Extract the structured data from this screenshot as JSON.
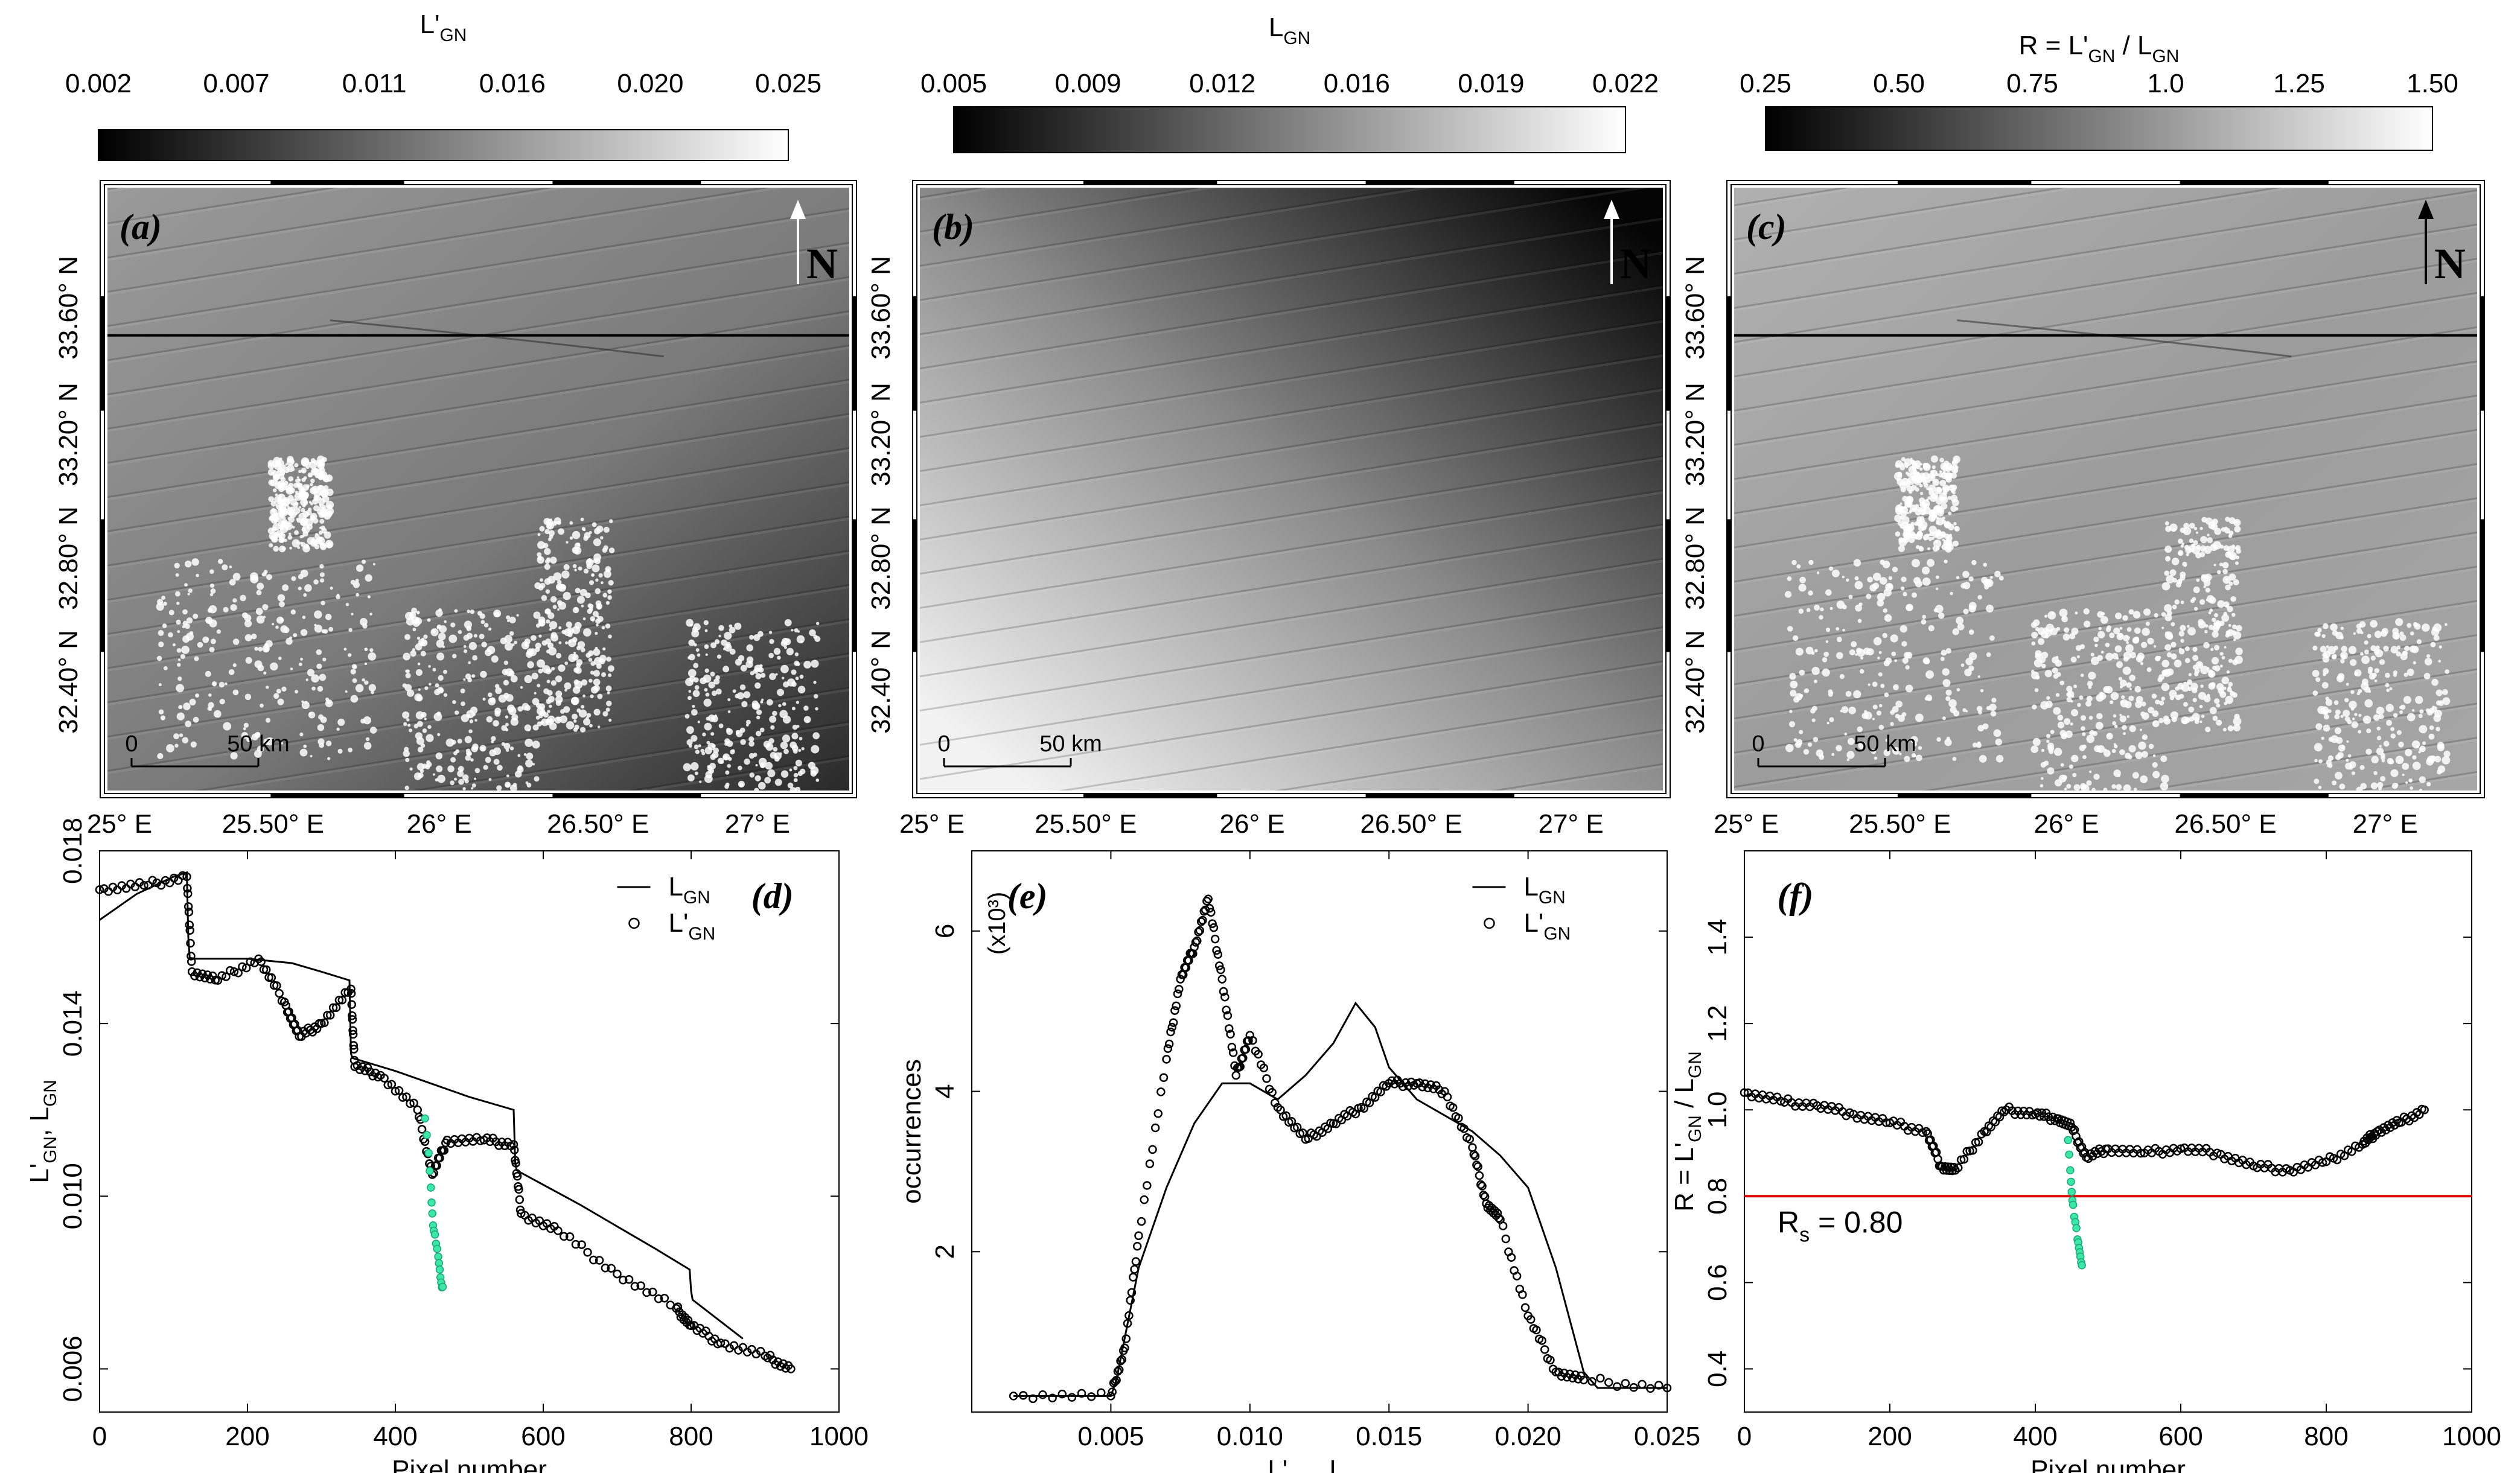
{
  "colorbars": [
    {
      "title": "L'",
      "sub": "GN",
      "ticks": [
        "0.002",
        "0.007",
        "0.011",
        "0.016",
        "0.020",
        "0.025"
      ]
    },
    {
      "title": "L",
      "sub": "GN",
      "ticks": [
        "0.005",
        "0.009",
        "0.012",
        "0.016",
        "0.019",
        "0.022"
      ]
    },
    {
      "title": "R = L'",
      "sub": "GN",
      "title2": " / L",
      "sub2": "GN",
      "ticks": [
        "0.25",
        "0.50",
        "0.75",
        "1.0",
        "1.25",
        "1.50"
      ]
    }
  ],
  "maps": [
    {
      "label": "(a)",
      "north": "N",
      "scale_zero": "0",
      "scale_dist": "50 km",
      "tone": "ratio_a"
    },
    {
      "label": "(b)",
      "north": "N",
      "scale_zero": "0",
      "scale_dist": "50 km",
      "tone": "gradient"
    },
    {
      "label": "(c)",
      "north": "N",
      "scale_zero": "0",
      "scale_dist": "50 km",
      "tone": "ratio_c"
    }
  ],
  "lat_ticks": [
    "32.40° N",
    "32.80° N",
    "33.20° N",
    "33.60° N"
  ],
  "lon_ticks": [
    "25° E",
    "25.50° E",
    "26° E",
    "26.50° E",
    "27° E"
  ],
  "chart_data": [
    {
      "panel": "(d)",
      "type": "line",
      "xlabel": "Pixel number",
      "ylabel": "L'GN, LGN",
      "xlim": [
        0,
        1000
      ],
      "ylim": [
        0.005,
        0.018
      ],
      "xticks": [
        "0",
        "200",
        "400",
        "600",
        "800",
        "1000"
      ],
      "yticks": [
        "0.006",
        "0.010",
        "0.014",
        "0.018"
      ],
      "legend_position": "top-right",
      "series": [
        {
          "name": "LGN",
          "style": "line",
          "color": "#000000",
          "x": [
            0,
            50,
            100,
            118,
            120,
            122,
            200,
            260,
            300,
            338,
            340,
            342,
            400,
            450,
            500,
            560,
            562,
            564,
            650,
            700,
            750,
            798,
            800,
            802,
            870
          ],
          "y": [
            0.0164,
            0.017,
            0.0174,
            0.0175,
            0.016,
            0.0155,
            0.0155,
            0.0154,
            0.0152,
            0.015,
            0.0133,
            0.0132,
            0.0129,
            0.0126,
            0.0123,
            0.012,
            0.0108,
            0.0106,
            0.0098,
            0.0093,
            0.0088,
            0.0083,
            0.0078,
            0.0076,
            0.0067
          ]
        },
        {
          "name": "L'GN",
          "style": "markers",
          "color": "#000000",
          "x": [
            0,
            60,
            118,
            125,
            160,
            215,
            250,
            270,
            300,
            340,
            345,
            380,
            430,
            450,
            470,
            520,
            560,
            570,
            620,
            700,
            780,
            800,
            840,
            900,
            935
          ],
          "y": [
            0.0171,
            0.0172,
            0.0174,
            0.0152,
            0.015,
            0.0155,
            0.0145,
            0.0137,
            0.014,
            0.0148,
            0.013,
            0.0128,
            0.012,
            0.0105,
            0.0113,
            0.0113,
            0.0112,
            0.0096,
            0.0092,
            0.0082,
            0.0074,
            0.007,
            0.0066,
            0.0063,
            0.006
          ]
        },
        {
          "name": "",
          "style": "markers",
          "color": "#3ce8a8",
          "x": [
            440,
            445,
            448,
            450,
            452,
            455,
            458,
            460,
            462,
            464
          ],
          "y": [
            0.0118,
            0.011,
            0.0102,
            0.0096,
            0.0092,
            0.0089,
            0.0086,
            0.0083,
            0.008,
            0.0079
          ]
        }
      ]
    },
    {
      "panel": "(e)",
      "type": "line",
      "xlabel": "L'GN, LGN",
      "ylabel": "occurrences",
      "yunit": "(x10³)",
      "xlim": [
        0.0,
        0.025
      ],
      "ylim": [
        0,
        7
      ],
      "xticks": [
        "0.005",
        "0.010",
        "0.015",
        "0.020",
        "0.025"
      ],
      "yticks": [
        "2",
        "4",
        "6"
      ],
      "legend_position": "top-right",
      "series": [
        {
          "name": "LGN",
          "style": "line",
          "color": "#000000",
          "x": [
            0.0015,
            0.005,
            0.0052,
            0.006,
            0.007,
            0.008,
            0.009,
            0.01,
            0.011,
            0.012,
            0.013,
            0.0138,
            0.0145,
            0.015,
            0.016,
            0.017,
            0.018,
            0.019,
            0.02,
            0.021,
            0.022,
            0.0225,
            0.025
          ],
          "y": [
            0.2,
            0.2,
            0.4,
            1.8,
            2.8,
            3.6,
            4.1,
            4.1,
            3.9,
            4.2,
            4.6,
            5.1,
            4.8,
            4.3,
            3.9,
            3.7,
            3.5,
            3.2,
            2.8,
            1.8,
            0.5,
            0.3,
            0.3
          ]
        },
        {
          "name": "L'GN",
          "style": "markers",
          "color": "#000000",
          "x": [
            0.0015,
            0.005,
            0.0055,
            0.006,
            0.007,
            0.0075,
            0.008,
            0.0085,
            0.009,
            0.0095,
            0.01,
            0.011,
            0.012,
            0.013,
            0.014,
            0.015,
            0.016,
            0.017,
            0.018,
            0.0185,
            0.019,
            0.02,
            0.021,
            0.022,
            0.025
          ],
          "y": [
            0.2,
            0.2,
            0.8,
            2.2,
            4.4,
            5.4,
            5.8,
            6.4,
            5.4,
            4.2,
            4.7,
            3.8,
            3.4,
            3.6,
            3.8,
            4.1,
            4.1,
            4.0,
            3.3,
            2.6,
            2.4,
            1.2,
            0.5,
            0.4,
            0.3
          ]
        }
      ]
    },
    {
      "panel": "(f)",
      "type": "line",
      "xlabel": "Pixel number",
      "ylabel": "R = L'GN / LGN",
      "xlim": [
        0,
        1000
      ],
      "ylim": [
        0.3,
        1.6
      ],
      "xticks": [
        "0",
        "200",
        "400",
        "600",
        "800",
        "1000"
      ],
      "yticks": [
        "0.4",
        "0.6",
        "0.8",
        "1.0",
        "1.2",
        "1.4"
      ],
      "annotation": "Rs = 0.80",
      "hline": {
        "y": 0.8,
        "color": "#e00000"
      },
      "series": [
        {
          "name": "R",
          "style": "markers",
          "color": "#000000",
          "x": [
            0,
            50,
            100,
            150,
            200,
            250,
            270,
            290,
            330,
            360,
            400,
            430,
            450,
            470,
            500,
            550,
            600,
            650,
            700,
            750,
            800,
            850,
            870,
            900,
            935
          ],
          "y": [
            1.04,
            1.02,
            1.01,
            0.99,
            0.97,
            0.95,
            0.87,
            0.86,
            0.95,
            1.0,
            0.99,
            0.98,
            0.96,
            0.89,
            0.91,
            0.9,
            0.91,
            0.9,
            0.87,
            0.86,
            0.88,
            0.92,
            0.95,
            0.97,
            1.0
          ]
        },
        {
          "name": "",
          "style": "markers",
          "color": "#3ce8a8",
          "x": [
            445,
            448,
            450,
            452,
            455,
            458,
            460,
            462,
            464
          ],
          "y": [
            0.93,
            0.86,
            0.81,
            0.78,
            0.74,
            0.7,
            0.68,
            0.66,
            0.64
          ]
        }
      ]
    }
  ],
  "colors": {
    "ink": "#000000",
    "accent_green": "#3ce8a8",
    "threshold_red": "#e00000"
  }
}
